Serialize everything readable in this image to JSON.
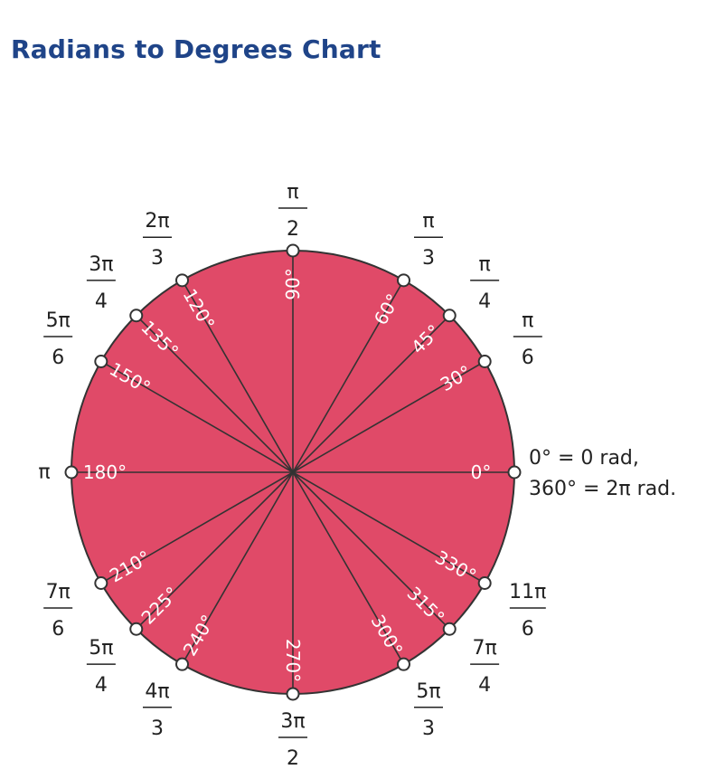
{
  "title": "Radians to Degrees Chart",
  "colors": {
    "circle_fill": "#e04a68",
    "outline": "#333333",
    "title": "#1f4488"
  },
  "angles": [
    {
      "deg": 0,
      "deg_label": "0°",
      "rad_num": "",
      "rad_den": ""
    },
    {
      "deg": 30,
      "deg_label": "30°",
      "rad_num": "π",
      "rad_den": "6"
    },
    {
      "deg": 45,
      "deg_label": "45°",
      "rad_num": "π",
      "rad_den": "4"
    },
    {
      "deg": 60,
      "deg_label": "60°",
      "rad_num": "π",
      "rad_den": "3"
    },
    {
      "deg": 90,
      "deg_label": "90°",
      "rad_num": "π",
      "rad_den": "2"
    },
    {
      "deg": 120,
      "deg_label": "120°",
      "rad_num": "2π",
      "rad_den": "3"
    },
    {
      "deg": 135,
      "deg_label": "135°",
      "rad_num": "3π",
      "rad_den": "4"
    },
    {
      "deg": 150,
      "deg_label": "150°",
      "rad_num": "5π",
      "rad_den": "6"
    },
    {
      "deg": 180,
      "deg_label": "180°",
      "rad_num": "π",
      "rad_den": ""
    },
    {
      "deg": 210,
      "deg_label": "210°",
      "rad_num": "7π",
      "rad_den": "6"
    },
    {
      "deg": 225,
      "deg_label": "225°",
      "rad_num": "5π",
      "rad_den": "4"
    },
    {
      "deg": 240,
      "deg_label": "240°",
      "rad_num": "4π",
      "rad_den": "3"
    },
    {
      "deg": 270,
      "deg_label": "270°",
      "rad_num": "3π",
      "rad_den": "2"
    },
    {
      "deg": 300,
      "deg_label": "300°",
      "rad_num": "5π",
      "rad_den": "3"
    },
    {
      "deg": 315,
      "deg_label": "315°",
      "rad_num": "7π",
      "rad_den": "4"
    },
    {
      "deg": 330,
      "deg_label": "330°",
      "rad_num": "11π",
      "rad_den": "6"
    }
  ],
  "note_line1": "0° = 0 rad,",
  "note_line2": "360° = 2π rad."
}
